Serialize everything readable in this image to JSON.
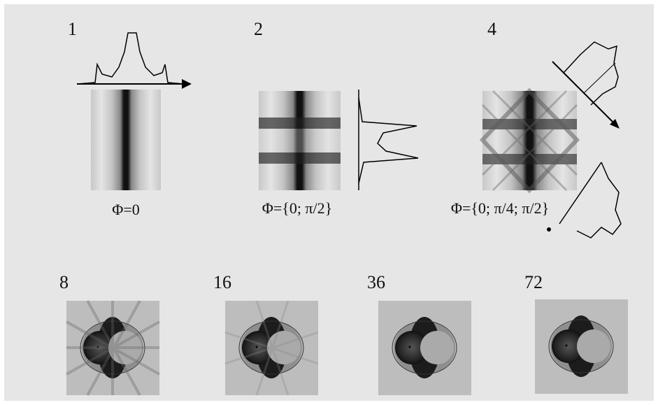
{
  "panels": [
    {
      "label": "1",
      "caption": "Φ=0"
    },
    {
      "label": "2",
      "caption": "Φ={0; π/2}"
    },
    {
      "label": "4",
      "caption": "Φ={0; π/4; π/2}"
    }
  ],
  "bottom": [
    {
      "label": "8"
    },
    {
      "label": "16"
    },
    {
      "label": "36"
    },
    {
      "label": "72"
    }
  ]
}
